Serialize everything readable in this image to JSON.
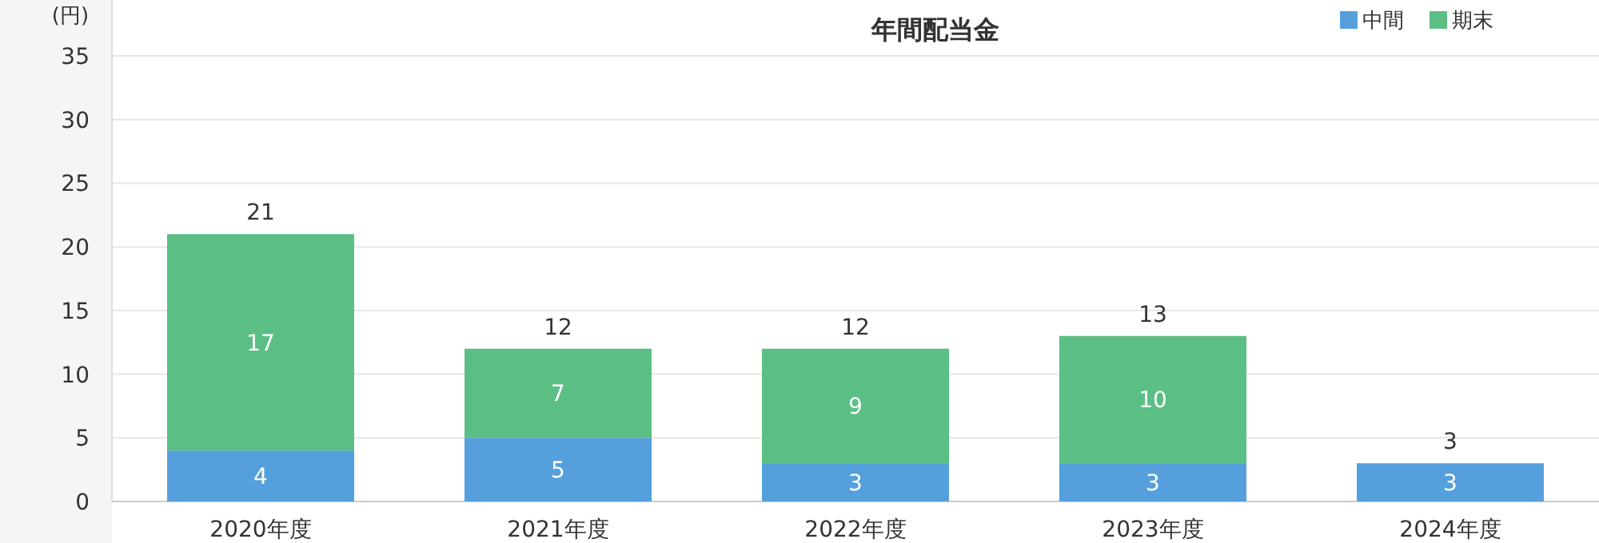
{
  "chart_data": {
    "type": "bar",
    "title": "年間配当金",
    "ylabel": "(円)",
    "stacked": true,
    "categories": [
      "2020年度",
      "2021年度",
      "2022年度",
      "2023年度",
      "2024年度"
    ],
    "series": [
      {
        "name": "中間",
        "color": "#55a0dc",
        "values": [
          4,
          5,
          3,
          3,
          3
        ]
      },
      {
        "name": "期末",
        "color": "#5bbf85",
        "values": [
          17,
          7,
          9,
          10,
          null
        ]
      }
    ],
    "ylim": [
      0,
      35
    ],
    "yticks": [
      0,
      5,
      10,
      15,
      20,
      25,
      30,
      35
    ],
    "grid": "y",
    "legend": "top right",
    "data_labels": true,
    "totals": [
      "21",
      "12",
      "12",
      "13",
      "3"
    ]
  }
}
